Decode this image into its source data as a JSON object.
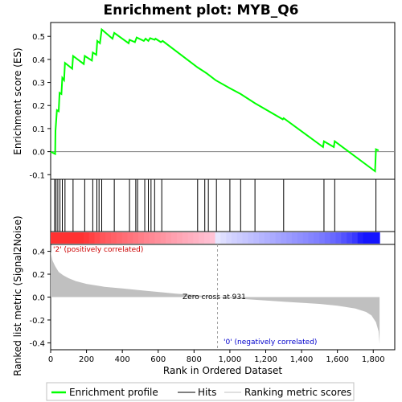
{
  "chart_data": {
    "type": "line",
    "title": "Enrichment plot: MYB_Q6",
    "es_panel": {
      "ylabel": "Enrichment score (ES)",
      "ylim": [
        -0.12,
        0.56
      ],
      "yticks": [
        -0.1,
        0.0,
        0.1,
        0.2,
        0.3,
        0.4,
        0.5
      ],
      "ytick_labels": [
        "-0.1",
        "0.0",
        "0.1",
        "0.2",
        "0.3",
        "0.4",
        "0.5"
      ],
      "series": [
        {
          "name": "Enrichment profile",
          "color": "#00ff00",
          "points": [
            [
              0,
              0.0
            ],
            [
              25,
              -0.01
            ],
            [
              27,
              0.09
            ],
            [
              35,
              0.18
            ],
            [
              45,
              0.175
            ],
            [
              50,
              0.255
            ],
            [
              60,
              0.25
            ],
            [
              65,
              0.32
            ],
            [
              75,
              0.31
            ],
            [
              80,
              0.385
            ],
            [
              120,
              0.36
            ],
            [
              125,
              0.415
            ],
            [
              185,
              0.38
            ],
            [
              190,
              0.415
            ],
            [
              230,
              0.395
            ],
            [
              235,
              0.43
            ],
            [
              255,
              0.42
            ],
            [
              260,
              0.48
            ],
            [
              275,
              0.47
            ],
            [
              285,
              0.53
            ],
            [
              345,
              0.49
            ],
            [
              355,
              0.515
            ],
            [
              435,
              0.47
            ],
            [
              440,
              0.485
            ],
            [
              470,
              0.475
            ],
            [
              480,
              0.495
            ],
            [
              520,
              0.48
            ],
            [
              530,
              0.49
            ],
            [
              545,
              0.48
            ],
            [
              555,
              0.492
            ],
            [
              580,
              0.485
            ],
            [
              585,
              0.49
            ],
            [
              615,
              0.475
            ],
            [
              625,
              0.48
            ],
            [
              820,
              0.365
            ],
            [
              870,
              0.34
            ],
            [
              920,
              0.31
            ],
            [
              1000,
              0.275
            ],
            [
              1060,
              0.25
            ],
            [
              1140,
              0.21
            ],
            [
              1295,
              0.14
            ],
            [
              1300,
              0.145
            ],
            [
              1520,
              0.02
            ],
            [
              1525,
              0.045
            ],
            [
              1580,
              0.02
            ],
            [
              1585,
              0.045
            ],
            [
              1810,
              -0.085
            ],
            [
              1815,
              0.01
            ],
            [
              1830,
              0.005
            ]
          ]
        }
      ]
    },
    "hits_panel": {
      "legend_name": "Hits",
      "positions": [
        22,
        30,
        40,
        52,
        65,
        80,
        125,
        190,
        235,
        258,
        270,
        285,
        355,
        440,
        475,
        485,
        525,
        545,
        560,
        580,
        620,
        820,
        860,
        880,
        925,
        1000,
        1060,
        1140,
        1300,
        1525,
        1585,
        1815
      ]
    },
    "metric_panel": {
      "ylabel": "Ranked list metric (Signal2Noise)",
      "legend_name": "Ranking metric scores",
      "ylim": [
        -0.46,
        0.46
      ],
      "yticks": [
        -0.4,
        -0.2,
        0.0,
        0.2,
        0.4
      ],
      "ytick_labels": [
        "-0.4",
        "-0.2",
        "0.0",
        "0.2",
        "0.4"
      ],
      "annotations": {
        "positive": "'2' (positively correlated)",
        "negative": "'0' (negatively correlated)",
        "zero_cross": "Zero cross at 931"
      },
      "zero_cross_rank": 931,
      "profile": [
        [
          0,
          0.4
        ],
        [
          10,
          0.32
        ],
        [
          25,
          0.27
        ],
        [
          45,
          0.22
        ],
        [
          70,
          0.19
        ],
        [
          100,
          0.165
        ],
        [
          140,
          0.14
        ],
        [
          200,
          0.115
        ],
        [
          300,
          0.09
        ],
        [
          400,
          0.075
        ],
        [
          500,
          0.06
        ],
        [
          600,
          0.045
        ],
        [
          700,
          0.03
        ],
        [
          800,
          0.018
        ],
        [
          900,
          0.005
        ],
        [
          931,
          0.0
        ],
        [
          1000,
          -0.01
        ],
        [
          1100,
          -0.02
        ],
        [
          1200,
          -0.03
        ],
        [
          1300,
          -0.04
        ],
        [
          1400,
          -0.05
        ],
        [
          1500,
          -0.06
        ],
        [
          1600,
          -0.075
        ],
        [
          1700,
          -0.1
        ],
        [
          1760,
          -0.13
        ],
        [
          1790,
          -0.16
        ],
        [
          1815,
          -0.22
        ],
        [
          1830,
          -0.3
        ],
        [
          1835,
          -0.41
        ]
      ]
    },
    "x_axis": {
      "label": "Rank in Ordered Dataset",
      "xlim": [
        0,
        1920
      ],
      "ticks": [
        0,
        200,
        400,
        600,
        800,
        1000,
        1200,
        1400,
        1600,
        1800
      ],
      "tick_labels": [
        "0",
        "200",
        "400",
        "600",
        "800",
        "1,000",
        "1,200",
        "1,400",
        "1,600",
        "1,800"
      ]
    },
    "legend": {
      "entries": [
        "Enrichment profile",
        "Hits",
        "Ranking metric scores"
      ],
      "placement": "bottom"
    }
  }
}
